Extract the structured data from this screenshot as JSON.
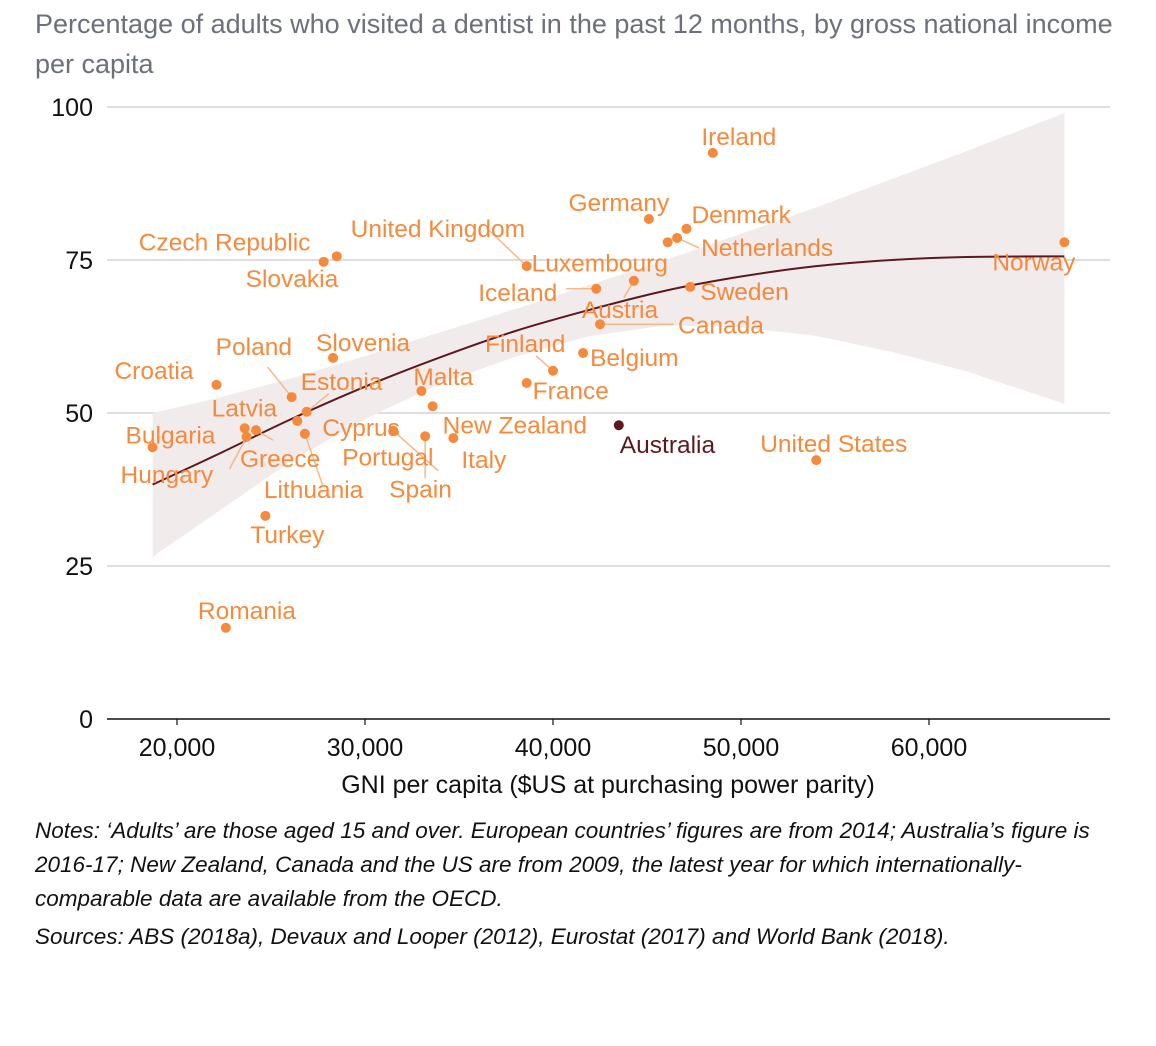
{
  "chart_data": {
    "type": "scatter",
    "title": "Percentage of adults who visited a dentist in the past 12 months, by gross national income per capita",
    "xlabel": "GNI per capita ($US at purchasing power parity)",
    "ylabel": "",
    "xlim": [
      16500,
      69500
    ],
    "ylim": [
      0,
      100
    ],
    "x_ticks": [
      20000,
      30000,
      40000,
      50000,
      60000
    ],
    "x_tick_labels": [
      "20,000",
      "30,000",
      "40,000",
      "50,000",
      "60,000"
    ],
    "y_ticks": [
      0,
      25,
      50,
      75,
      100
    ],
    "y_tick_labels": [
      "0",
      "25",
      "50",
      "75",
      "100"
    ],
    "grid": "horizontal",
    "colors": {
      "point": "#f58a3d",
      "highlight": "#5c1a1f",
      "trend": "#5c1a1f",
      "band": "#f1ebec",
      "grid": "#c8cbd1",
      "leader": "#f5b888"
    },
    "points": [
      {
        "name": "Ireland",
        "x": 48500,
        "y": 92.5
      },
      {
        "name": "Germany",
        "x": 45100,
        "y": 81.7
      },
      {
        "name": "Denmark",
        "x": 47100,
        "y": 80.1
      },
      {
        "name": "Netherlands",
        "x": 46600,
        "y": 78.6
      },
      {
        "name": "Luxembourg",
        "x": 46100,
        "y": 77.9
      },
      {
        "name": "United Kingdom",
        "x": 38600,
        "y": 74.0
      },
      {
        "name": "Iceland",
        "x": 42300,
        "y": 70.3
      },
      {
        "name": "Austria",
        "x": 44300,
        "y": 71.6
      },
      {
        "name": "Sweden",
        "x": 47300,
        "y": 70.6
      },
      {
        "name": "Canada",
        "x": 42500,
        "y": 64.5
      },
      {
        "name": "Belgium",
        "x": 41600,
        "y": 59.8
      },
      {
        "name": "Finland",
        "x": 40000,
        "y": 56.9
      },
      {
        "name": "France",
        "x": 38600,
        "y": 54.9
      },
      {
        "name": "Norway",
        "x": 67200,
        "y": 77.9
      },
      {
        "name": "United States",
        "x": 54000,
        "y": 42.3
      },
      {
        "name": "Australia",
        "x": 43500,
        "y": 48.0,
        "highlight": true
      },
      {
        "name": "New Zealand",
        "x": 33600,
        "y": 51.1
      },
      {
        "name": "Malta",
        "x": 33000,
        "y": 53.6
      },
      {
        "name": "Italy",
        "x": 34700,
        "y": 45.9
      },
      {
        "name": "Spain",
        "x": 33200,
        "y": 46.2
      },
      {
        "name": "Portugal",
        "x": 31500,
        "y": 47.1
      },
      {
        "name": "Czech Republic",
        "x": 28500,
        "y": 75.6
      },
      {
        "name": "Slovakia",
        "x": 27800,
        "y": 74.7
      },
      {
        "name": "Slovenia",
        "x": 28300,
        "y": 59.0
      },
      {
        "name": "Poland",
        "x": 26100,
        "y": 52.6
      },
      {
        "name": "Estonia",
        "x": 26900,
        "y": 50.2
      },
      {
        "name": "Cyprus",
        "x": 26400,
        "y": 48.7
      },
      {
        "name": "Lithuania",
        "x": 26800,
        "y": 46.6
      },
      {
        "name": "Croatia",
        "x": 22100,
        "y": 54.6
      },
      {
        "name": "Latvia",
        "x": 23600,
        "y": 47.5
      },
      {
        "name": "Greece",
        "x": 24200,
        "y": 47.2
      },
      {
        "name": "Hungary",
        "x": 23700,
        "y": 46.1
      },
      {
        "name": "Bulgaria",
        "x": 18700,
        "y": 44.4
      },
      {
        "name": "Turkey",
        "x": 24700,
        "y": 33.2
      },
      {
        "name": "Romania",
        "x": 22600,
        "y": 14.9
      }
    ],
    "trend": {
      "x": [
        18700,
        22000,
        26000,
        30000,
        34000,
        38000,
        42000,
        46000,
        50000,
        54000,
        58000,
        62000,
        67200
      ],
      "y": [
        38.3,
        43.0,
        48.9,
        54.3,
        59.1,
        63.4,
        66.9,
        70.0,
        72.3,
        74.0,
        75.0,
        75.5,
        75.6
      ]
    },
    "band": {
      "x": [
        18700,
        22000,
        26000,
        30000,
        34000,
        38000,
        42000,
        46000,
        50000,
        54000,
        58000,
        62000,
        67200
      ],
      "upper": [
        50.0,
        52.3,
        55.6,
        59.3,
        63.2,
        67.0,
        71.0,
        75.0,
        79.3,
        83.6,
        88.2,
        92.8,
        99.0
      ],
      "lower": [
        26.5,
        33.5,
        42.0,
        49.0,
        54.8,
        59.2,
        62.6,
        64.3,
        64.0,
        62.6,
        60.0,
        56.8,
        51.5
      ]
    }
  },
  "notes": "Notes: ‘Adults’ are those aged 15 and over. European countries’ figures are from 2014; Australia’s figure is 2016-17; New Zealand, Canada and the US are from 2009, the latest year for which internationally-comparable data are available from the OECD.",
  "sources": "Sources: ABS (2018a), Devaux and Looper (2012), Eurostat (2017) and World Bank (2018)."
}
